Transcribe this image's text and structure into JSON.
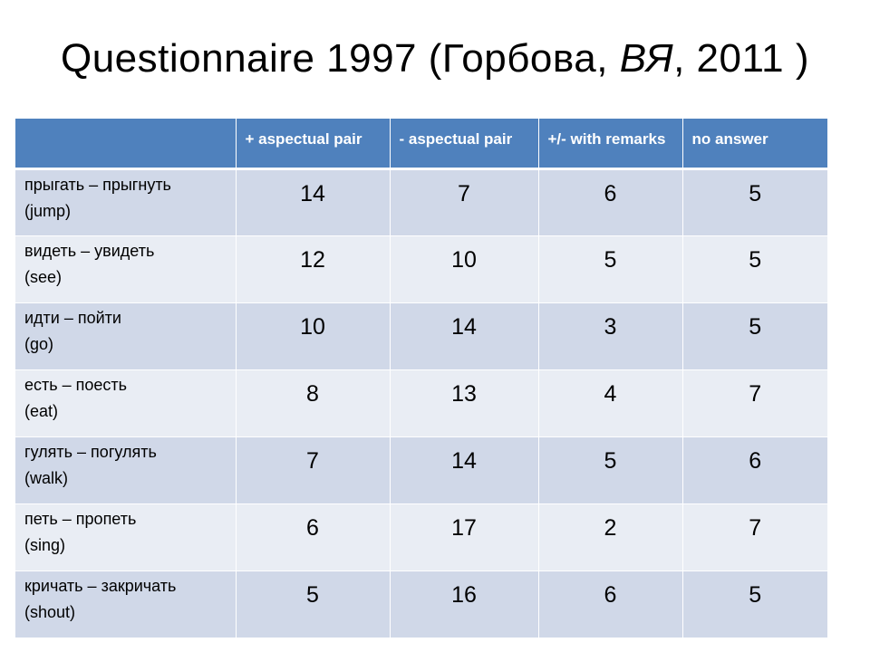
{
  "title": {
    "prefix": "Questionnaire 1997 (Горбова, ",
    "italic": "ВЯ",
    "suffix": ", 2011 )"
  },
  "table": {
    "headers": [
      "",
      "+ aspectual pair",
      "- aspectual pair",
      "+/- with remarks",
      "no answer"
    ],
    "rows": [
      {
        "verb": "прыгать – прыгнуть",
        "gloss": "(jump)",
        "values": [
          "14",
          "7",
          "6",
          "5"
        ]
      },
      {
        "verb": "видеть – увидеть",
        "gloss": "(see)",
        "values": [
          "12",
          "10",
          "5",
          "5"
        ]
      },
      {
        "verb": "идти – пойти",
        "gloss": "(go)",
        "values": [
          "10",
          "14",
          "3",
          "5"
        ]
      },
      {
        "verb": "есть – поесть",
        "gloss": "(eat)",
        "values": [
          "8",
          "13",
          "4",
          "7"
        ]
      },
      {
        "verb": "гулять – погулять",
        "gloss": "(walk)",
        "values": [
          "7",
          "14",
          "5",
          "6"
        ]
      },
      {
        "verb": "петь – пропеть",
        "gloss": "(sing)",
        "values": [
          "6",
          "17",
          "2",
          "7"
        ]
      },
      {
        "verb": "кричать – закричать",
        "gloss": "(shout)",
        "values": [
          "5",
          "16",
          "6",
          "5"
        ]
      }
    ]
  },
  "colors": {
    "header_bg": "#4f81bd",
    "row_odd_bg": "#d0d8e8",
    "row_even_bg": "#e9edf4"
  }
}
